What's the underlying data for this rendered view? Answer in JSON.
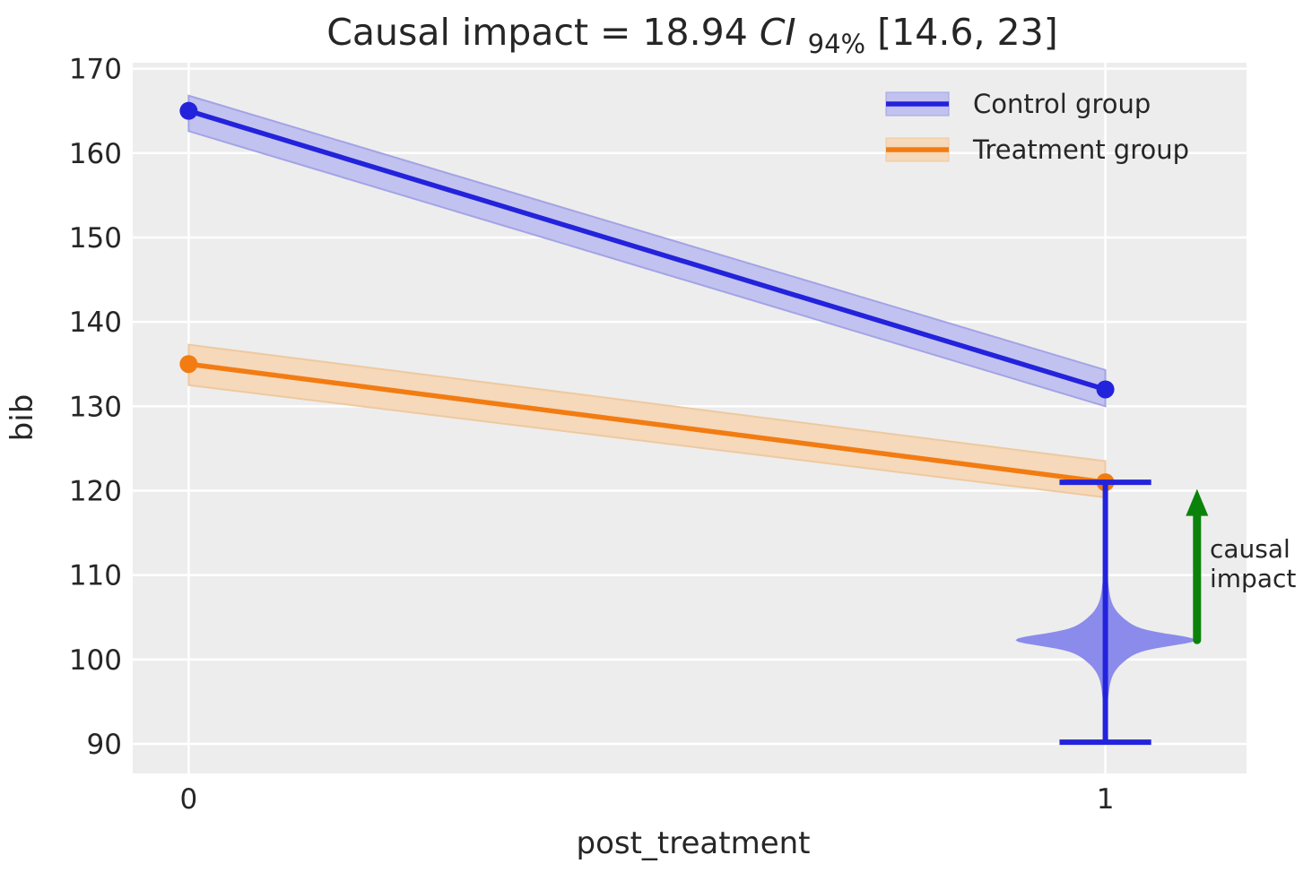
{
  "title": {
    "prefix": "Causal impact = 18.94",
    "ci": "CI",
    "sub": "94%",
    "interval": "[14.6, 23]"
  },
  "chart_data": {
    "type": "line",
    "title_text": "Causal impact = 18.94 CI 94% [14.6, 23]",
    "xlabel": "post_treatment",
    "ylabel": "bib",
    "xlim": [
      -0.061,
      1.154
    ],
    "ylim": [
      86.5,
      170.7
    ],
    "xticks": [
      0,
      1
    ],
    "yticks": [
      90,
      100,
      110,
      120,
      130,
      140,
      150,
      160,
      170
    ],
    "grid": true,
    "legend_position": "upper right",
    "series": [
      {
        "name": "Control group",
        "x": [
          0,
          1
        ],
        "y": [
          165,
          132
        ],
        "y_upper": [
          166.8,
          134.3
        ],
        "y_lower": [
          162.6,
          130.0
        ],
        "color": "#2323dc",
        "band_color": "#c2c2f0",
        "band_edge": "#a3a3e6"
      },
      {
        "name": "Treatment group",
        "x": [
          0,
          1
        ],
        "y": [
          135,
          121
        ],
        "y_upper": [
          137.3,
          123.5
        ],
        "y_lower": [
          132.5,
          119.2
        ],
        "color": "#f27c12",
        "band_color": "#f6d8ba",
        "band_edge": "#eec9a0"
      }
    ],
    "violin": {
      "x": 1,
      "mean": 102.3,
      "hdi": [
        90.2,
        121.0
      ],
      "max_halfwidth": 0.098,
      "cap_halfwidth": 0.05,
      "fill": "#8b8bec",
      "line_color": "#2323dc"
    },
    "arrow": {
      "x": 1.1,
      "y_from": 102.3,
      "y_to": 120.2,
      "color": "#0b830b",
      "label_lines": [
        "causal",
        "impact"
      ]
    },
    "colors": {
      "background": "#ededed",
      "grid": "#ffffff",
      "text": "#262626"
    }
  }
}
